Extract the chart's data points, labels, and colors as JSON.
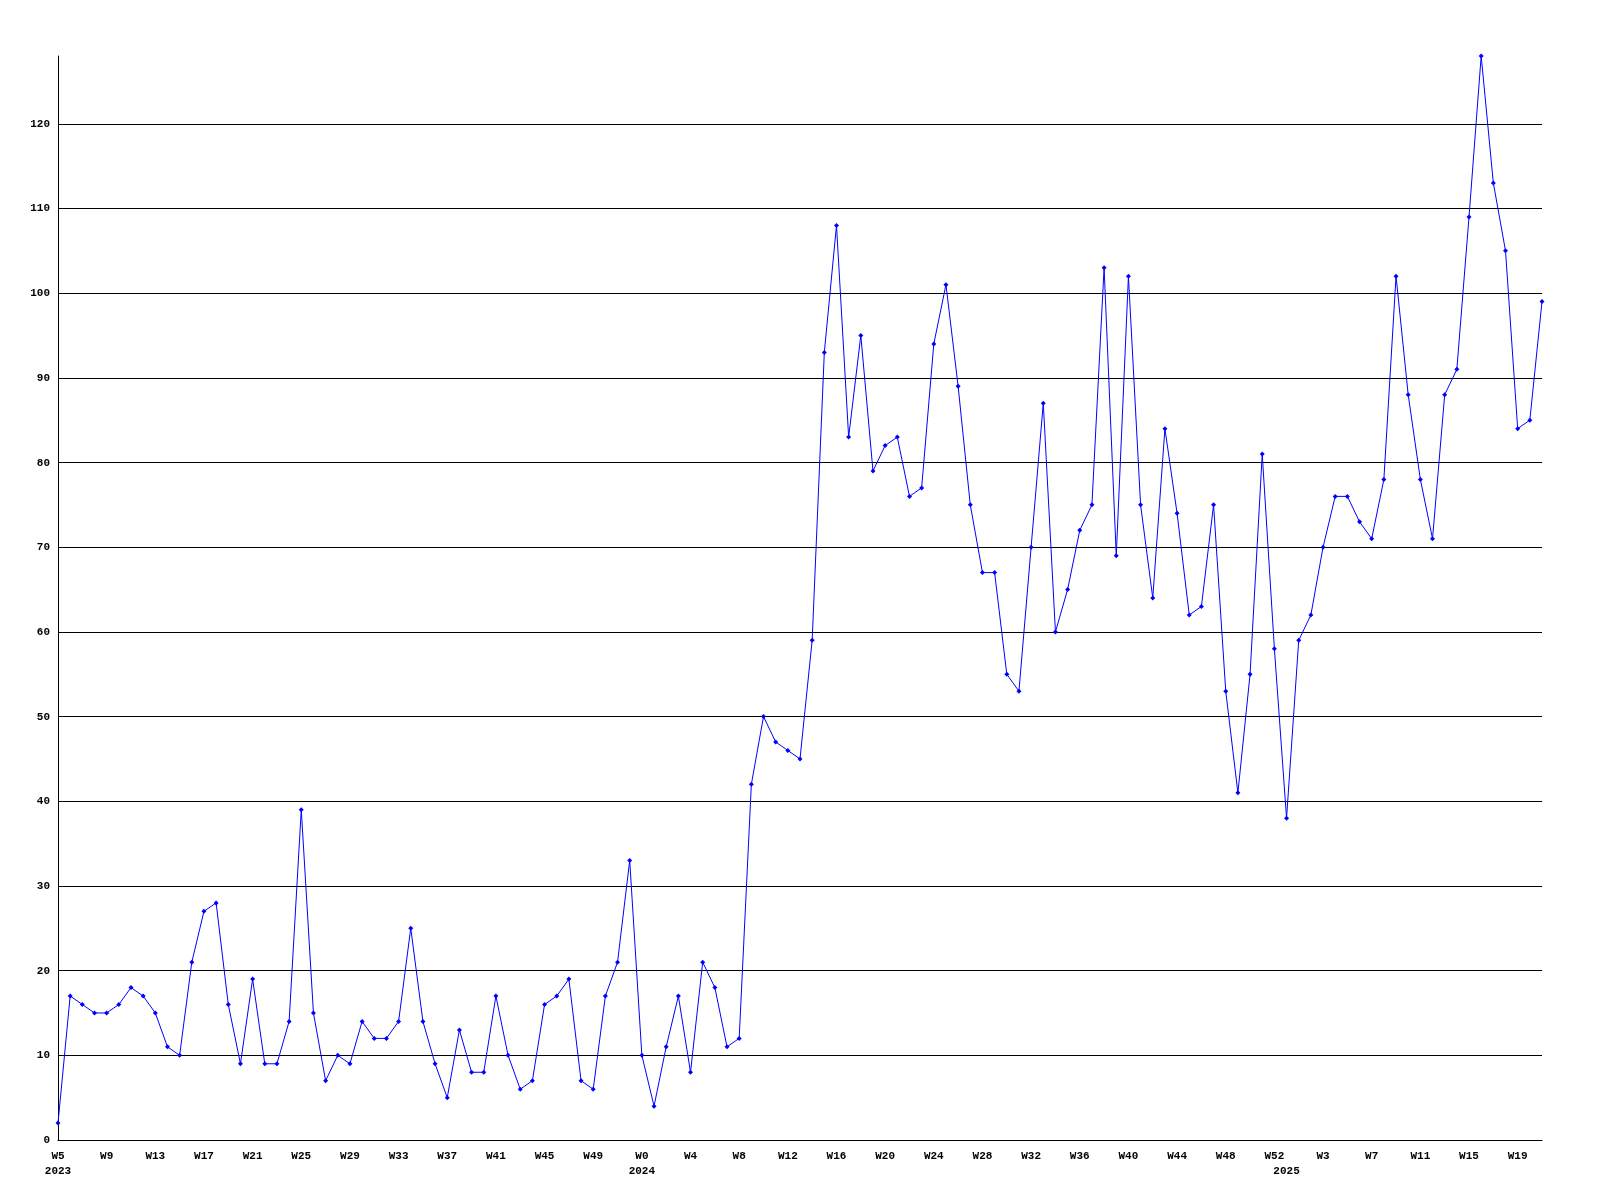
{
  "chart_data": {
    "type": "line",
    "categories": [
      "W5\n2023",
      null,
      null,
      null,
      "W9",
      null,
      null,
      null,
      "W13",
      null,
      null,
      null,
      "W17",
      null,
      null,
      null,
      "W21",
      null,
      null,
      null,
      "W25",
      null,
      null,
      null,
      "W29",
      null,
      null,
      null,
      "W33",
      null,
      null,
      null,
      "W37",
      null,
      null,
      null,
      "W41",
      null,
      null,
      null,
      "W45",
      null,
      null,
      null,
      "W49",
      null,
      null,
      null,
      "W0\n2024",
      null,
      null,
      null,
      "W4",
      null,
      null,
      null,
      "W8",
      null,
      null,
      null,
      "W12",
      null,
      null,
      null,
      "W16",
      null,
      null,
      null,
      "W20",
      null,
      null,
      null,
      "W24",
      null,
      null,
      null,
      "W28",
      null,
      null,
      null,
      "W32",
      null,
      null,
      null,
      "W36",
      null,
      null,
      null,
      "W40",
      null,
      null,
      null,
      "W44",
      null,
      null,
      null,
      "W48",
      null,
      null,
      null,
      "W52",
      "\n2025",
      null,
      null,
      "W3",
      null,
      null,
      null,
      "W7",
      null,
      null,
      null,
      "W11",
      null,
      null,
      null,
      "W15",
      null,
      null,
      null,
      "W19",
      null,
      null
    ],
    "series": [
      {
        "color": "#0000ff",
        "values": [
          2,
          17,
          16,
          15,
          15,
          16,
          18,
          17,
          15,
          11,
          10,
          21,
          27,
          28,
          16,
          9,
          19,
          9,
          9,
          14,
          39,
          15,
          7,
          10,
          9,
          14,
          12,
          12,
          14,
          25,
          14,
          9,
          5,
          13,
          8,
          8,
          17,
          10,
          6,
          7,
          16,
          17,
          19,
          7,
          6,
          17,
          21,
          33,
          10,
          4,
          11,
          17,
          8,
          21,
          18,
          11,
          12,
          42,
          50,
          47,
          46,
          45,
          59,
          93,
          108,
          83,
          95,
          79,
          82,
          83,
          76,
          77,
          94,
          101,
          89,
          75,
          67,
          67,
          55,
          53,
          70,
          87,
          60,
          65,
          72,
          75,
          103,
          69,
          102,
          75,
          64,
          84,
          74,
          62,
          63,
          75,
          53,
          41,
          55,
          81,
          58,
          38,
          59,
          62,
          70,
          76,
          76,
          73,
          71,
          78,
          102,
          88,
          78,
          71,
          88,
          91,
          109,
          128,
          113,
          105,
          84,
          85,
          99
        ]
      }
    ],
    "ylim": [
      0,
      128
    ],
    "yticks": [
      0,
      10,
      20,
      30,
      40,
      50,
      60,
      70,
      80,
      90,
      100,
      110,
      120
    ],
    "grid": "y",
    "marker": "diamond",
    "line_style": "solid"
  }
}
